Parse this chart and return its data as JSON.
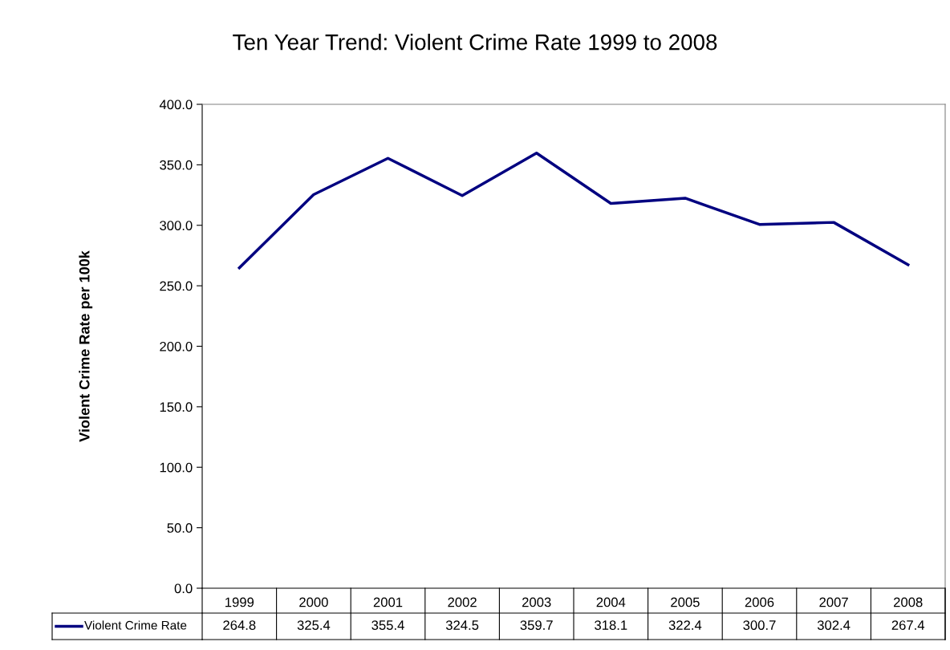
{
  "chart_data": {
    "type": "line",
    "title": "Ten Year Trend: Violent Crime Rate 1999 to 2008",
    "ylabel": "Violent Crime Rate per 100k",
    "categories": [
      "1999",
      "2000",
      "2001",
      "2002",
      "2003",
      "2004",
      "2005",
      "2006",
      "2007",
      "2008"
    ],
    "series": [
      {
        "name": "Violent Crime Rate",
        "color": "#000080",
        "values": [
          264.8,
          325.4,
          355.4,
          324.5,
          359.7,
          318.1,
          322.4,
          300.7,
          302.4,
          267.4
        ]
      }
    ],
    "ylim": [
      0,
      400
    ],
    "yticks": [
      {
        "value": 0,
        "label": "0.0"
      },
      {
        "value": 50,
        "label": "50.0"
      },
      {
        "value": 100,
        "label": "100.0"
      },
      {
        "value": 150,
        "label": "150.0"
      },
      {
        "value": 200,
        "label": "200.0"
      },
      {
        "value": 250,
        "label": "250.0"
      },
      {
        "value": 300,
        "label": "300.0"
      },
      {
        "value": 350,
        "label": "350.0"
      },
      {
        "value": 400,
        "label": "400.0"
      }
    ],
    "data_labels": true,
    "legend": "bottom",
    "grid": false,
    "marker": "none",
    "line_style": "solid"
  }
}
